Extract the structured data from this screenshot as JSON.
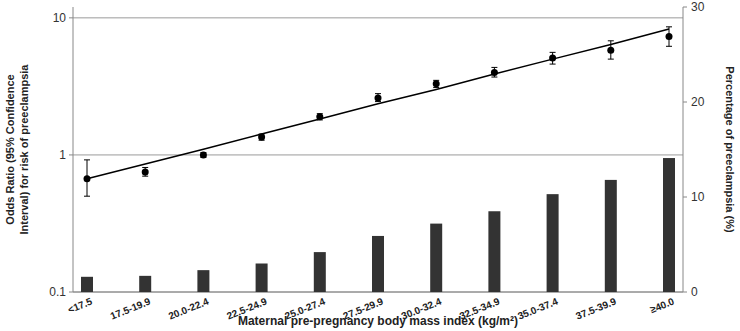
{
  "chart_data": {
    "type": "scatter",
    "x_label": "Maternal pre-pregnancy body mass index (kg/m²)",
    "y_label": [
      "Odds Ratio (95% Confidence",
      "Interval) for risk of preeclampsia"
    ],
    "y2_label": "Percentage of preeclampsia (%)",
    "categories": [
      "<17.5",
      "17.5-19.9",
      "20.0-22.4",
      "22.5-24.9",
      "25.0-27.4",
      "27.5-29.9",
      "30.0-32.4",
      "32.5-34.9",
      "35.0-37.4",
      "37.5-39.9",
      "≥40.0"
    ],
    "log": "y",
    "ylim": [
      0.1,
      12
    ],
    "yticks": [
      0.1,
      1,
      10
    ],
    "y2lim": [
      0,
      30
    ],
    "y2ticks": [
      0,
      10,
      20,
      30
    ],
    "grid": true,
    "series": [
      {
        "type": "bar",
        "axis": "y2",
        "color": "#333333",
        "values": [
          1.6,
          1.7,
          2.3,
          3.0,
          4.2,
          5.9,
          7.2,
          8.5,
          10.3,
          11.8,
          14.1
        ]
      },
      {
        "type": "line",
        "color": "#000000",
        "line_style": "solid",
        "values": [
          0.67,
          0.86,
          1.1,
          1.42,
          1.83,
          2.36,
          3.0,
          3.9,
          5.0,
          6.4,
          8.3
        ]
      },
      {
        "type": "scatter",
        "color": "#000000",
        "marker": "circle",
        "values": [
          0.67,
          0.75,
          1.0,
          1.35,
          1.9,
          2.6,
          3.3,
          4.0,
          5.1,
          5.8,
          7.3
        ],
        "ci_low": [
          0.5,
          0.7,
          0.96,
          1.28,
          1.8,
          2.45,
          3.1,
          3.7,
          4.6,
          5.0,
          6.2
        ],
        "ci_high": [
          0.92,
          0.81,
          1.04,
          1.42,
          2.0,
          2.8,
          3.5,
          4.35,
          5.6,
          6.8,
          8.6
        ]
      }
    ]
  }
}
